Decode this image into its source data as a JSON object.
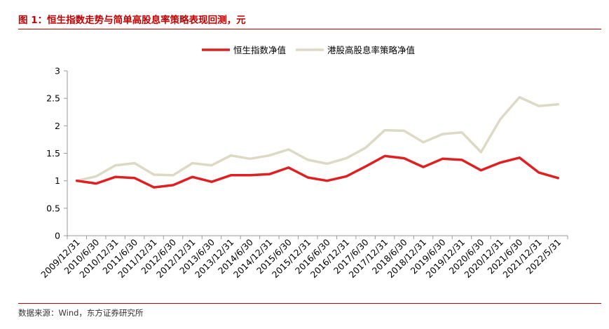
{
  "header": {
    "title": "图 1：恒生指数走势与简单高股息率策略表现回测，元"
  },
  "footer": {
    "source": "数据来源：Wind，东方证券研究所"
  },
  "chart_data": {
    "type": "line",
    "title": "图 1：恒生指数走势与简单高股息率策略表现回测，元",
    "xlabel": "",
    "ylabel": "",
    "ylim": [
      0,
      3
    ],
    "yticks": [
      "0",
      "0.5",
      "1",
      "1.5",
      "2",
      "2.5",
      "3"
    ],
    "grid": false,
    "legend_position": "top",
    "categories": [
      "2009/12/31",
      "2010/6/30",
      "2010/12/31",
      "2011/6/30",
      "2011/12/31",
      "2012/6/30",
      "2012/12/31",
      "2013/6/30",
      "2013/12/31",
      "2014/6/30",
      "2014/12/31",
      "2015/6/30",
      "2015/12/31",
      "2016/6/30",
      "2016/12/31",
      "2017/6/30",
      "2017/12/31",
      "2018/6/30",
      "2018/12/31",
      "2019/6/30",
      "2019/12/31",
      "2020/6/30",
      "2020/12/31",
      "2021/6/30",
      "2021/12/31",
      "2022/5/31"
    ],
    "series": [
      {
        "name": "恒生指数净值",
        "color": "#e02020",
        "values": [
          1.0,
          0.95,
          1.07,
          1.05,
          0.88,
          0.92,
          1.07,
          0.98,
          1.1,
          1.1,
          1.12,
          1.24,
          1.06,
          1.0,
          1.08,
          1.26,
          1.45,
          1.41,
          1.25,
          1.4,
          1.38,
          1.19,
          1.33,
          1.42,
          1.15,
          1.05
        ]
      },
      {
        "name": "港股高股息率策略净值",
        "color": "#ddd9c4",
        "values": [
          1.0,
          1.08,
          1.28,
          1.32,
          1.11,
          1.1,
          1.32,
          1.28,
          1.46,
          1.4,
          1.46,
          1.57,
          1.38,
          1.31,
          1.41,
          1.6,
          1.92,
          1.91,
          1.7,
          1.85,
          1.88,
          1.52,
          2.12,
          2.52,
          2.36,
          2.39
        ]
      }
    ]
  }
}
